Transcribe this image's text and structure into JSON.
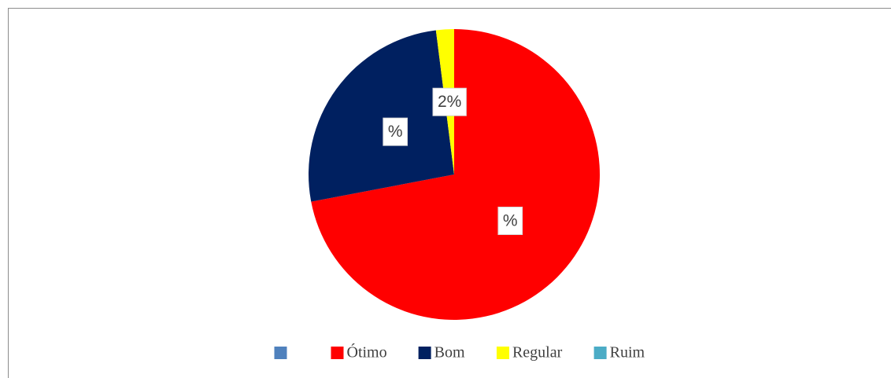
{
  "chart_data": {
    "type": "pie",
    "categories": [
      null,
      "Ótimo",
      "Bom",
      "Regular",
      "Ruim"
    ],
    "values": [
      0,
      72,
      26,
      2,
      0
    ],
    "value_labels": [
      null,
      "%",
      "%",
      "2%",
      null
    ],
    "colors": [
      "#4f81bd",
      "#ff0000",
      "#002060",
      "#ffff00",
      "#4bacc6"
    ],
    "legend": "bottom"
  }
}
